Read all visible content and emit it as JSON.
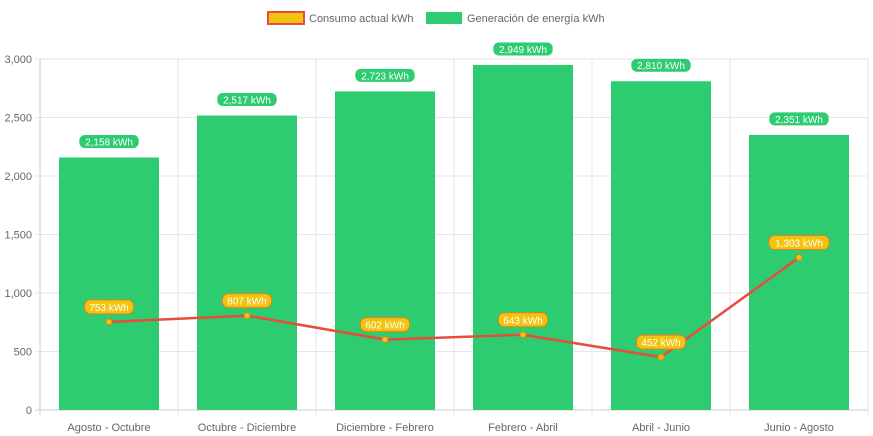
{
  "chart_data": {
    "type": "bar",
    "title": "",
    "categories": [
      "Agosto - Octubre",
      "Octubre - Diciembre",
      "Diciembre - Febrero",
      "Febrero - Abril",
      "Abril - Junio",
      "Junio - Agosto"
    ],
    "series": [
      {
        "name": "Consumo actual kWh",
        "type": "line",
        "values": [
          753,
          807,
          602,
          643,
          452,
          1303
        ],
        "labels": [
          "753 kWh",
          "807 kWh",
          "602 kWh",
          "643 kWh",
          "452 kWh",
          "1,303 kWh"
        ],
        "color": "#e74c3c",
        "fill": "#f1c40f"
      },
      {
        "name": "Generación de energía kWh",
        "type": "bar",
        "values": [
          2158,
          2517,
          2723,
          2949,
          2810,
          2351
        ],
        "labels": [
          "2,158 kWh",
          "2,517 kWh",
          "2,723 kWh",
          "2,949 kWh",
          "2,810 kWh",
          "2,351 kWh"
        ],
        "color": "#2ecc71"
      }
    ],
    "yticks": [
      "0",
      "500",
      "1,000",
      "1,500",
      "2,000",
      "2,500",
      "3,000"
    ],
    "ylim": [
      0,
      3000
    ],
    "xlabel": "",
    "ylabel": "",
    "grid": true,
    "legend": "top-center"
  }
}
